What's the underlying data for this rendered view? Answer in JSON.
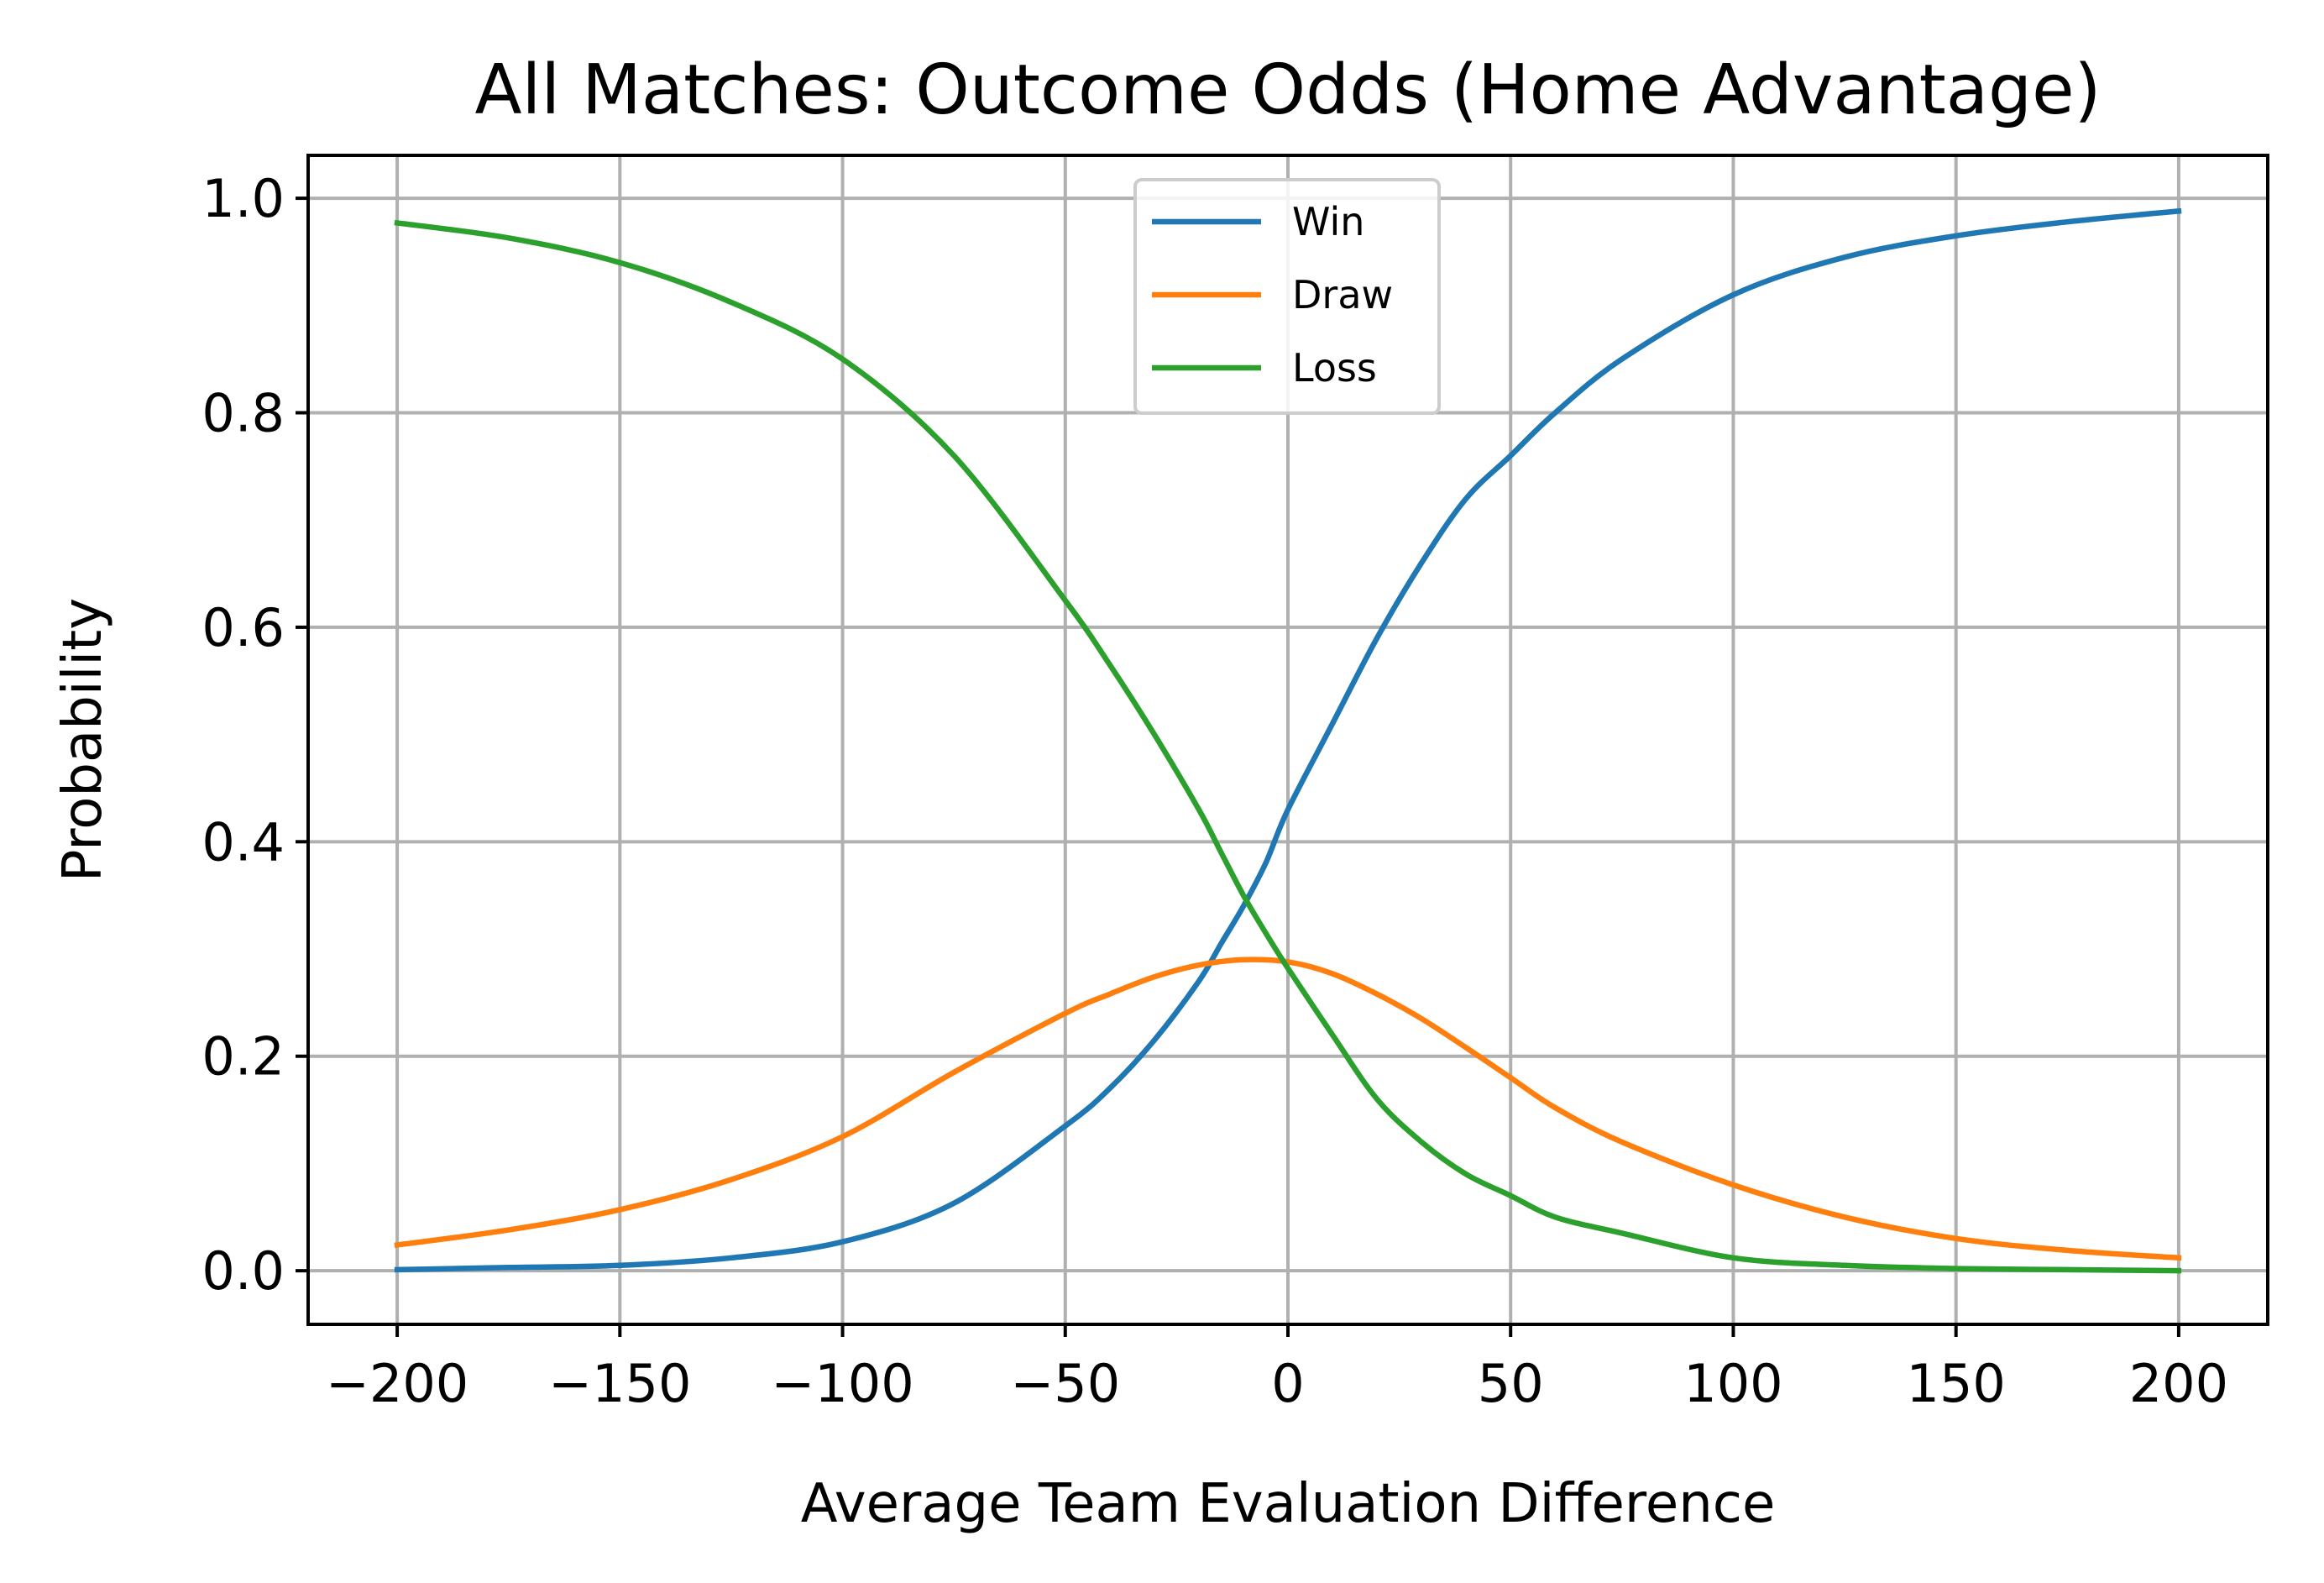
{
  "chart_data": {
    "type": "line",
    "title": "All Matches: Outcome Odds (Home Advantage)",
    "xlabel": "Average Team Evaluation Difference",
    "ylabel": "Probability",
    "xlim": [
      -220,
      220
    ],
    "ylim": [
      -0.05,
      1.04
    ],
    "xticks": [
      -200,
      -150,
      -100,
      -50,
      0,
      50,
      100,
      150,
      200
    ],
    "xtick_labels": [
      "−200",
      "−150",
      "−100",
      "−50",
      "0",
      "50",
      "100",
      "150",
      "200"
    ],
    "yticks": [
      0.0,
      0.2,
      0.4,
      0.6,
      0.8,
      1.0
    ],
    "ytick_labels": [
      "0.0",
      "0.2",
      "0.4",
      "0.6",
      "0.8",
      "1.0"
    ],
    "grid": true,
    "legend_position": "upper-center",
    "series": [
      {
        "name": "Win",
        "color": "#1f77b4",
        "x": [
          -200,
          -175,
          -150,
          -125,
          -100,
          -75,
          -50,
          -40,
          -30,
          -20,
          -15,
          -10,
          -5,
          0,
          10,
          20,
          30,
          40,
          50,
          60,
          75,
          100,
          125,
          150,
          175,
          200
        ],
        "y": [
          0.001,
          0.003,
          0.005,
          0.012,
          0.027,
          0.063,
          0.135,
          0.17,
          0.215,
          0.27,
          0.305,
          0.34,
          0.38,
          0.43,
          0.51,
          0.59,
          0.66,
          0.72,
          0.76,
          0.8,
          0.85,
          0.91,
          0.945,
          0.965,
          0.978,
          0.988
        ]
      },
      {
        "name": "Draw",
        "color": "#ff7f0e",
        "x": [
          -200,
          -175,
          -150,
          -125,
          -100,
          -75,
          -50,
          -40,
          -30,
          -20,
          -10,
          0,
          10,
          20,
          30,
          40,
          50,
          60,
          75,
          100,
          125,
          150,
          175,
          200
        ],
        "y": [
          0.024,
          0.038,
          0.057,
          0.085,
          0.125,
          0.185,
          0.24,
          0.258,
          0.274,
          0.285,
          0.29,
          0.288,
          0.277,
          0.258,
          0.235,
          0.208,
          0.18,
          0.152,
          0.12,
          0.08,
          0.05,
          0.03,
          0.019,
          0.012
        ]
      },
      {
        "name": "Loss",
        "color": "#2ca02c",
        "x": [
          -200,
          -175,
          -150,
          -125,
          -100,
          -75,
          -50,
          -40,
          -30,
          -20,
          -15,
          -10,
          -5,
          0,
          10,
          20,
          30,
          40,
          50,
          60,
          75,
          100,
          125,
          150,
          175,
          200
        ],
        "y": [
          0.977,
          0.963,
          0.94,
          0.903,
          0.85,
          0.76,
          0.625,
          0.565,
          0.5,
          0.43,
          0.39,
          0.35,
          0.315,
          0.282,
          0.22,
          0.16,
          0.12,
          0.09,
          0.07,
          0.05,
          0.035,
          0.012,
          0.005,
          0.002,
          0.001,
          0.0
        ]
      }
    ]
  }
}
